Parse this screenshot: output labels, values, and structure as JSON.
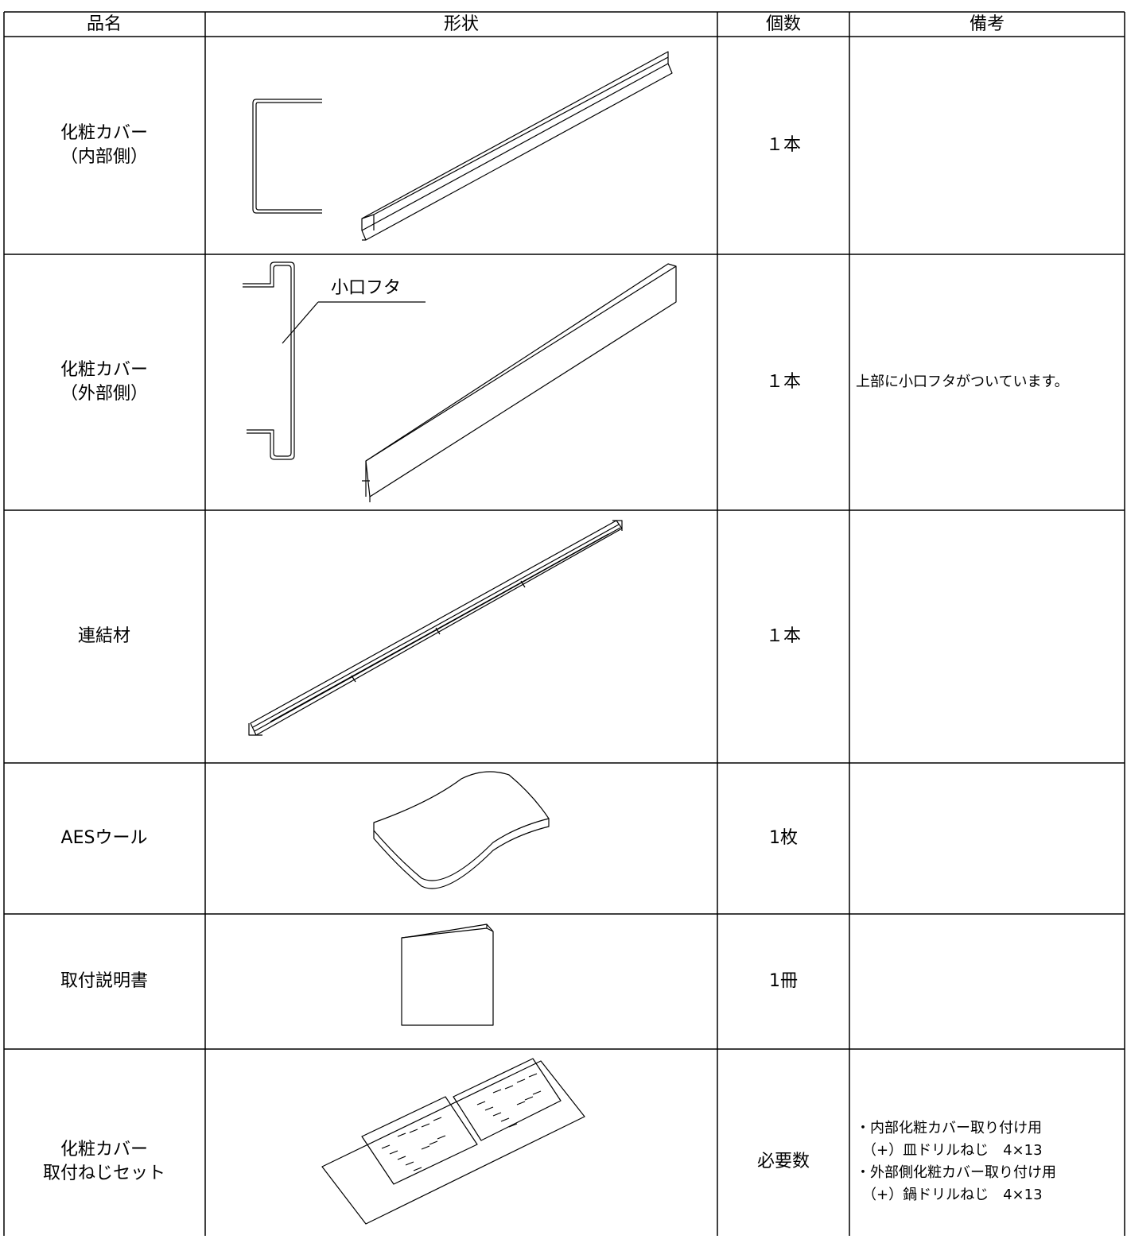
{
  "header": [
    "品名",
    "形状",
    "個数",
    "備考"
  ],
  "rows": [
    {
      "name": [
        "化粧カバー",
        "（内部側）"
      ],
      "count": "１本"
    },
    {
      "name": [
        "化粧カバー",
        "（外部側）"
      ],
      "count": "１本",
      "label": "小口フタ",
      "note": [
        "上部に小口フタがついています。"
      ]
    },
    {
      "name": [
        "連結材"
      ],
      "count": "１本"
    },
    {
      "name": [
        "AESウール"
      ],
      "count": "1枚"
    },
    {
      "name": [
        "取付説明書"
      ],
      "count": "1冊"
    },
    {
      "name": [
        "化粧カバー",
        "取付ねじセット"
      ],
      "count": "必要数",
      "note": [
        "・内部化粧カバー取り付け用",
        "（+）皿ドリルねじ　4×13",
        "・外部側化粧カバー取り付け用",
        "（+）鍋ドリルねじ　4×13"
      ]
    }
  ]
}
